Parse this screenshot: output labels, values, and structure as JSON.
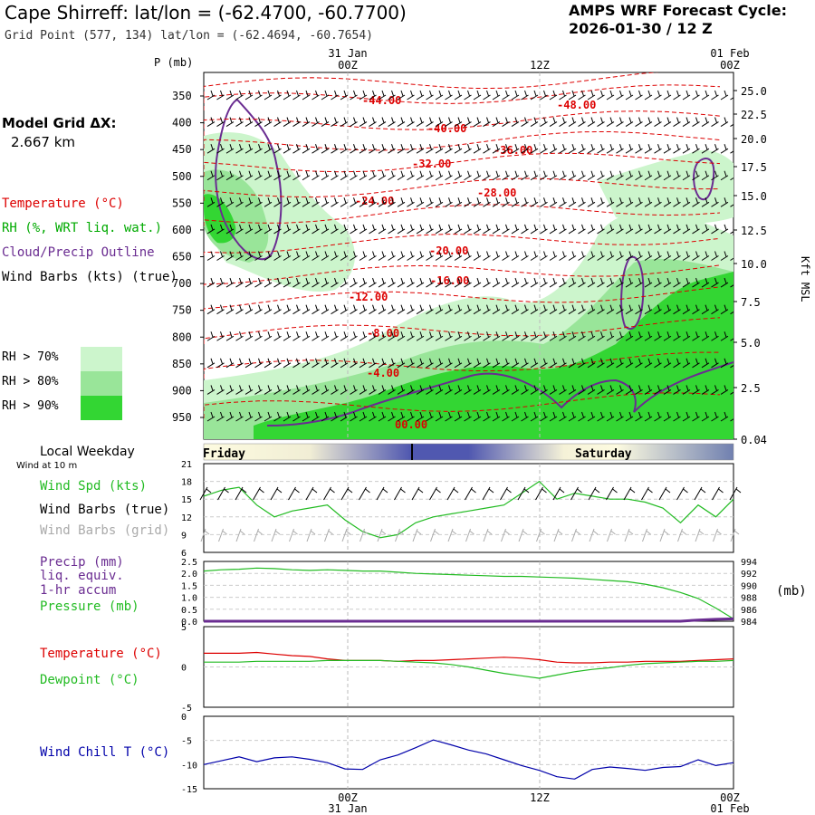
{
  "header": {
    "title": "Cape Shirreff:  lat/lon = (-62.4700, -60.7700)",
    "subtitle": "Grid Point (577, 134) lat/lon = (-62.4694, -60.7654)",
    "cycle_line1": "AMPS WRF Forecast Cycle:",
    "cycle_line2": "2026-01-30 / 12  Z"
  },
  "sidebar": {
    "model_grid_label": "Model Grid ΔX:",
    "model_grid_value": "2.667 km",
    "legend_temperature": "Temperature (°C)",
    "legend_rh": "RH (%, WRT liq. wat.)",
    "legend_cloud": "Cloud/Precip Outline",
    "legend_wind": "Wind Barbs (kts) (true)",
    "rh70": "RH > 70%",
    "rh80": "RH > 80%",
    "rh90": "RH > 90%",
    "local_weekday": "Local Weekday",
    "wind_at": "Wind at 10 m",
    "wind_spd": "Wind Spd (kts)",
    "wind_barbs_true": "Wind Barbs (true)",
    "wind_barbs_grid": "Wind Barbs (grid)",
    "precip_1": "Precip (mm)",
    "precip_2": "liq. equiv.",
    "precip_3": "1-hr accum",
    "pressure": "Pressure (mb)",
    "temperature": "Temperature (°C)",
    "dewpoint": "Dewpoint (°C)",
    "wind_chill": "Wind Chill T (°C)",
    "p_axis": "P (mb)",
    "kft_axis": "Kft MSL",
    "mb_unit": "(mb)"
  },
  "colors": {
    "temperature": "#dd0000",
    "rh_label": "#00aa00",
    "cloud": "#6a2c91",
    "rh70": "#ccf5cc",
    "rh80": "#99e599",
    "rh90": "#33d633",
    "wind_spd": "#22bb22",
    "pressure": "#22bb22",
    "dewpoint": "#22bb22",
    "precip": "#6a2c91",
    "wind_chill": "#0000aa",
    "grid_barbs": "#aaaaaa"
  },
  "time_axis": {
    "top_dates": [
      "31 Jan",
      "01 Feb"
    ],
    "labels": [
      "00Z",
      "12Z",
      "00Z"
    ],
    "bottom_dates": [
      "31 Jan",
      "01 Feb"
    ],
    "days": [
      "Friday",
      "Saturday"
    ]
  },
  "chart_data": [
    {
      "type": "line",
      "name": "cross-section",
      "ylabel": "P (mb)",
      "yticks_left": [
        "350",
        "400",
        "450",
        "500",
        "550",
        "600",
        "650",
        "700",
        "750",
        "800",
        "850",
        "900",
        "950"
      ],
      "yticks_right": [
        "25.0",
        "22.5",
        "20.0",
        "17.5",
        "15.0",
        "12.5",
        "10.0",
        "7.5",
        "5.0",
        "2.5",
        "0.04"
      ],
      "temperature_contour_labels": [
        "-44.00",
        "-48.00",
        "-40.00",
        "-36.00",
        "-32.00",
        "-28.00",
        "-24.00",
        "-20.00",
        "-16.00",
        "-12.00",
        "-8.00",
        "-4.00",
        "00.00"
      ]
    },
    {
      "type": "line",
      "name": "wind",
      "yticks": [
        "21",
        "18",
        "15",
        "12",
        "9",
        "6"
      ],
      "ylim": [
        6,
        21
      ],
      "series": [
        {
          "name": "Wind Spd (kts)",
          "values": [
            15.5,
            16.5,
            17.0,
            14.0,
            12.0,
            13.0,
            13.5,
            14.0,
            11.5,
            9.5,
            8.5,
            9.0,
            11.0,
            12.0,
            12.5,
            13.0,
            13.5,
            14.0,
            16.0,
            18.0,
            15.0,
            16.0,
            15.5,
            15.0,
            15.0,
            14.5,
            13.5,
            11.0,
            14.0,
            12.0,
            15.0
          ]
        }
      ]
    },
    {
      "type": "line",
      "name": "precip-pressure",
      "yticks_left": [
        "2.5",
        "2.0",
        "1.5",
        "1.0",
        "0.5",
        "0.0"
      ],
      "yticks_right": [
        "994",
        "992",
        "990",
        "988",
        "986",
        "984"
      ],
      "ylim": [
        0,
        2.5
      ],
      "ylim_right": [
        984,
        994
      ],
      "series": [
        {
          "name": "Pressure (mb)",
          "values": [
            992.4,
            992.6,
            992.7,
            992.9,
            992.8,
            992.6,
            992.5,
            992.6,
            992.5,
            992.4,
            992.4,
            992.2,
            992.0,
            991.9,
            991.8,
            991.7,
            991.6,
            991.5,
            991.5,
            991.4,
            991.3,
            991.2,
            991.0,
            990.8,
            990.6,
            990.2,
            989.6,
            988.8,
            987.8,
            986.2,
            984.4
          ]
        },
        {
          "name": "Precip (mm)",
          "values": [
            0,
            0,
            0,
            0,
            0,
            0,
            0,
            0,
            0,
            0,
            0,
            0,
            0,
            0,
            0,
            0,
            0,
            0,
            0,
            0,
            0,
            0,
            0,
            0,
            0,
            0,
            0,
            0,
            0.05,
            0.08,
            0.1
          ]
        }
      ]
    },
    {
      "type": "line",
      "name": "temperature-dewpoint",
      "yticks": [
        "5",
        "0",
        "-5"
      ],
      "ylim": [
        -5,
        5
      ],
      "series": [
        {
          "name": "Temperature (°C)",
          "values": [
            1.7,
            1.7,
            1.7,
            1.8,
            1.6,
            1.4,
            1.3,
            1.0,
            0.8,
            0.8,
            0.8,
            0.7,
            0.8,
            0.8,
            0.9,
            1.0,
            1.1,
            1.2,
            1.1,
            0.9,
            0.6,
            0.5,
            0.5,
            0.6,
            0.6,
            0.7,
            0.7,
            0.7,
            0.8,
            0.9,
            1.0
          ]
        },
        {
          "name": "Dewpoint (°C)",
          "values": [
            0.6,
            0.6,
            0.6,
            0.7,
            0.7,
            0.7,
            0.7,
            0.8,
            0.8,
            0.8,
            0.8,
            0.7,
            0.6,
            0.5,
            0.3,
            0.0,
            -0.4,
            -0.8,
            -1.1,
            -1.4,
            -1.0,
            -0.6,
            -0.3,
            -0.1,
            0.2,
            0.4,
            0.5,
            0.6,
            0.7,
            0.7,
            0.8
          ]
        }
      ]
    },
    {
      "type": "line",
      "name": "wind-chill",
      "yticks": [
        "0",
        "-5",
        "-10",
        "-15"
      ],
      "ylim": [
        -15,
        0
      ],
      "series": [
        {
          "name": "Wind Chill T (°C)",
          "values": [
            -10.0,
            -9.2,
            -8.4,
            -9.4,
            -8.6,
            -8.4,
            -8.9,
            -9.6,
            -10.9,
            -11.0,
            -9.0,
            -8.0,
            -6.5,
            -4.9,
            -5.9,
            -7.0,
            -7.8,
            -9.0,
            -10.2,
            -11.2,
            -12.5,
            -13.0,
            -11.0,
            -10.5,
            -10.8,
            -11.2,
            -10.6,
            -10.4,
            -9.0,
            -10.2,
            -9.6
          ]
        }
      ]
    }
  ]
}
